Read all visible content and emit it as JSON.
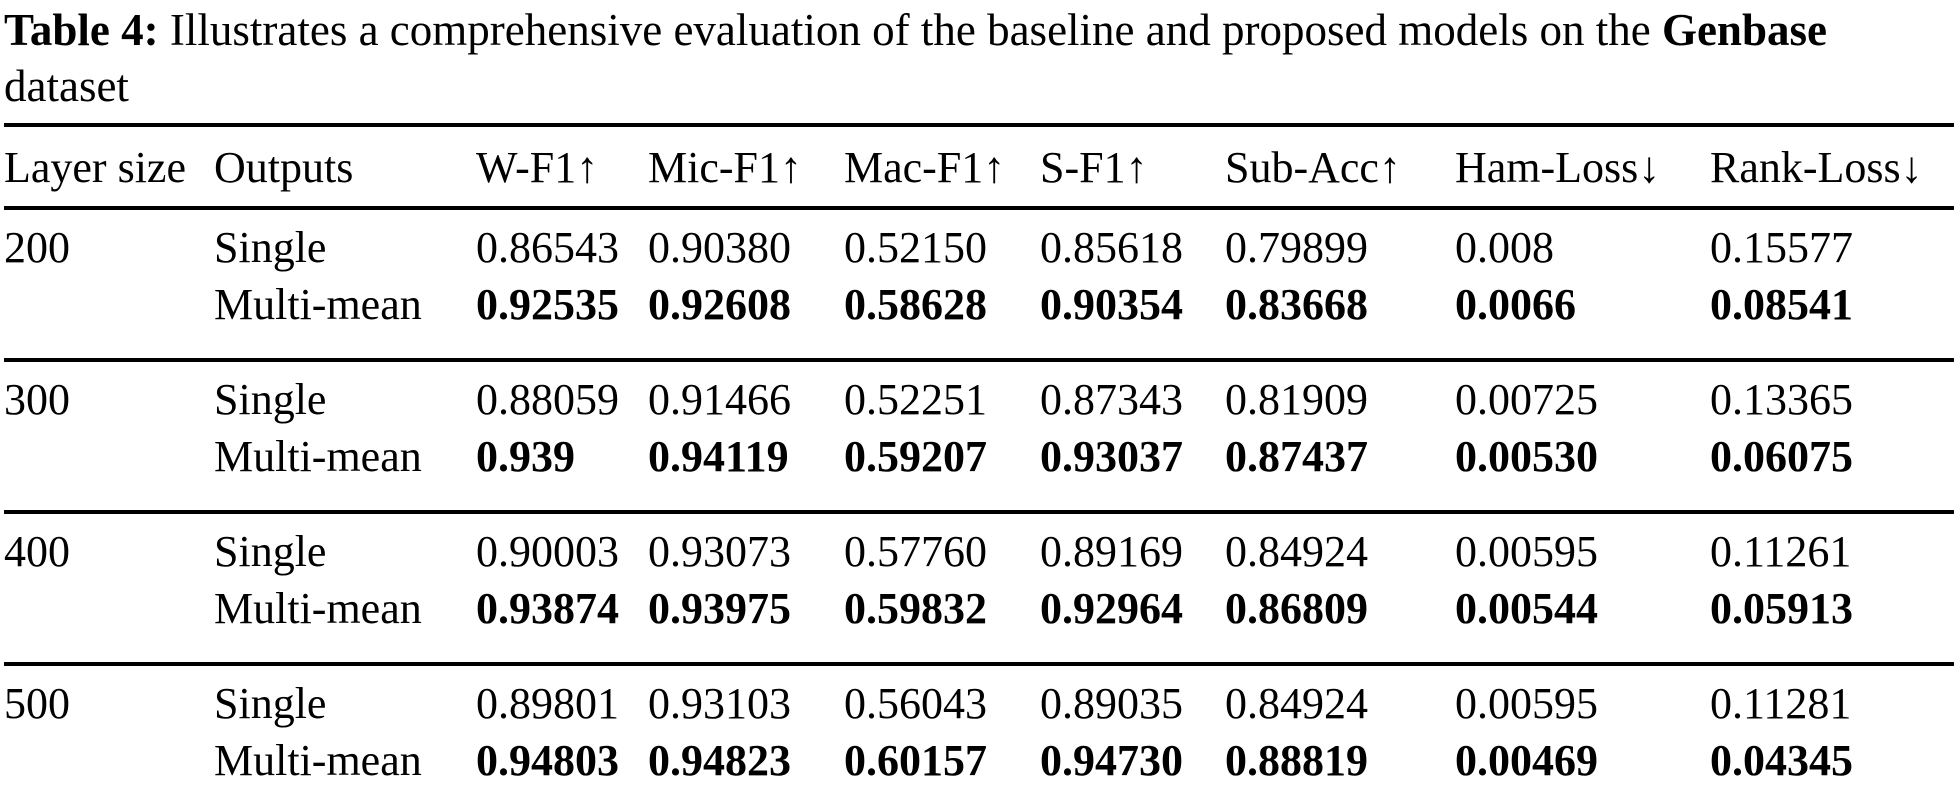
{
  "caption": {
    "label": "Table 4:",
    "text": " Illustrates a comprehensive evaluation of the baseline and proposed models on the ",
    "dataset_name": "Genbase",
    "suffix": " dataset"
  },
  "table": {
    "columns": [
      "Layer size",
      "Outputs",
      "W-F1↑",
      "Mic-F1↑",
      "Mac-F1↑",
      "S-F1↑",
      "Sub-Acc↑",
      "Ham-Loss↓",
      "Rank-Loss↓"
    ],
    "column_names": [
      "layer-size",
      "outputs",
      "w-f1",
      "mic-f1",
      "mac-f1",
      "s-f1",
      "sub-acc",
      "ham-loss",
      "rank-loss"
    ],
    "groups": [
      {
        "layer_size": "200",
        "rows": [
          {
            "outputs": "Single",
            "bold": false,
            "values": [
              "0.86543",
              "0.90380",
              "0.52150",
              "0.85618",
              "0.79899",
              "0.008",
              "0.15577"
            ]
          },
          {
            "outputs": "Multi-mean",
            "bold": true,
            "values": [
              "0.92535",
              "0.92608",
              "0.58628",
              "0.90354",
              "0.83668",
              "0.0066",
              "0.08541"
            ]
          }
        ]
      },
      {
        "layer_size": "300",
        "rows": [
          {
            "outputs": "Single",
            "bold": false,
            "values": [
              "0.88059",
              "0.91466",
              "0.52251",
              "0.87343",
              "0.81909",
              "0.00725",
              "0.13365"
            ]
          },
          {
            "outputs": "Multi-mean",
            "bold": true,
            "values": [
              "0.939",
              "0.94119",
              "0.59207",
              "0.93037",
              "0.87437",
              "0.00530",
              "0.06075"
            ]
          }
        ]
      },
      {
        "layer_size": "400",
        "rows": [
          {
            "outputs": "Single",
            "bold": false,
            "values": [
              "0.90003",
              "0.93073",
              "0.57760",
              "0.89169",
              "0.84924",
              "0.00595",
              "0.11261"
            ]
          },
          {
            "outputs": "Multi-mean",
            "bold": true,
            "values": [
              "0.93874",
              "0.93975",
              "0.59832",
              "0.92964",
              "0.86809",
              "0.00544",
              "0.05913"
            ]
          }
        ]
      },
      {
        "layer_size": "500",
        "rows": [
          {
            "outputs": "Single",
            "bold": false,
            "values": [
              "0.89801",
              "0.93103",
              "0.56043",
              "0.89035",
              "0.84924",
              "0.00595",
              "0.11281"
            ]
          },
          {
            "outputs": "Multi-mean",
            "bold": true,
            "values": [
              "0.94803",
              "0.94823",
              "0.60157",
              "0.94730",
              "0.88819",
              "0.00469",
              "0.04345"
            ]
          }
        ]
      }
    ]
  }
}
